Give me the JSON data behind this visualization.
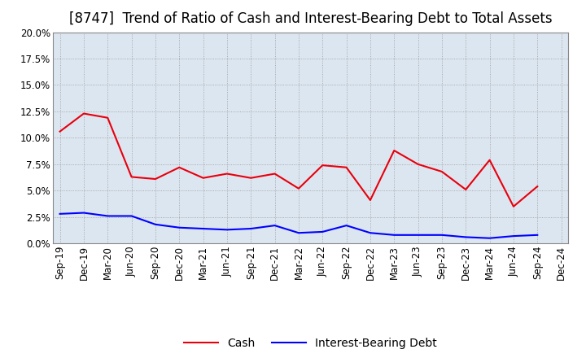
{
  "title": "[8747]  Trend of Ratio of Cash and Interest-Bearing Debt to Total Assets",
  "x_labels": [
    "Sep-19",
    "Dec-19",
    "Mar-20",
    "Jun-20",
    "Sep-20",
    "Dec-20",
    "Mar-21",
    "Jun-21",
    "Sep-21",
    "Dec-21",
    "Mar-22",
    "Jun-22",
    "Sep-22",
    "Dec-22",
    "Mar-23",
    "Jun-23",
    "Sep-23",
    "Dec-23",
    "Mar-24",
    "Jun-24",
    "Sep-24",
    "Dec-24"
  ],
  "cash": [
    10.6,
    12.3,
    11.9,
    6.3,
    6.1,
    7.2,
    6.2,
    6.6,
    6.2,
    6.6,
    5.2,
    7.4,
    7.2,
    4.1,
    8.8,
    7.5,
    6.8,
    5.1,
    7.9,
    3.5,
    5.4,
    null
  ],
  "debt": [
    2.8,
    2.9,
    2.6,
    2.6,
    1.8,
    1.5,
    1.4,
    1.3,
    1.4,
    1.7,
    1.0,
    1.1,
    1.7,
    1.0,
    0.8,
    0.8,
    0.8,
    0.6,
    0.5,
    0.7,
    0.8,
    null
  ],
  "cash_color": "#e8000d",
  "debt_color": "#0000ff",
  "background_color": "#ffffff",
  "plot_bg_color": "#dce6f0",
  "grid_color": "#999999",
  "ylim": [
    0,
    20.0
  ],
  "yticks": [
    0.0,
    2.5,
    5.0,
    7.5,
    10.0,
    12.5,
    15.0,
    17.5,
    20.0
  ],
  "legend_cash": "Cash",
  "legend_debt": "Interest-Bearing Debt",
  "title_fontsize": 12,
  "axis_fontsize": 8.5,
  "legend_fontsize": 10
}
